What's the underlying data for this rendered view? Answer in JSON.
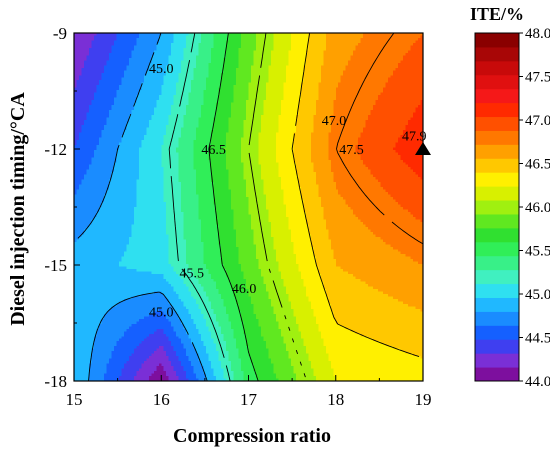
{
  "chart_data": {
    "type": "heatmap",
    "subtype": "filled-contour",
    "title": "",
    "xlabel": "Compression ratio",
    "ylabel": "Diesel injection timing/°CA",
    "xlim": [
      15,
      19
    ],
    "ylim": [
      -18,
      -9
    ],
    "x_ticks": [
      "15",
      "16",
      "17",
      "18",
      "19"
    ],
    "y_ticks": [
      "-9",
      "-12",
      "-15",
      "-18"
    ],
    "x": [
      15,
      16,
      17,
      18,
      19
    ],
    "y": [
      -9,
      -12,
      -15,
      -18
    ],
    "z_grid": [
      [
        44.2,
        45.0,
        46.3,
        47.3,
        47.6
      ],
      [
        44.6,
        45.4,
        46.5,
        47.5,
        47.95
      ],
      [
        45.1,
        45.3,
        46.3,
        47.2,
        47.4
      ],
      [
        45.2,
        44.0,
        45.9,
        46.8,
        46.9
      ]
    ],
    "z_units": "ITE/%",
    "colorbar": {
      "title": "ITE/%",
      "min": 44.0,
      "max": 48.0,
      "tick_labels": [
        "48.0",
        "47.5",
        "47.0",
        "46.5",
        "46.0",
        "45.5",
        "45.0",
        "44.5",
        "44.0"
      ],
      "levels_step": 0.2,
      "colors": [
        "#7d0f9e",
        "#7a2fd6",
        "#3f3ff0",
        "#1560ff",
        "#1a8cff",
        "#20b8ff",
        "#2fe0f0",
        "#40f0c0",
        "#38f088",
        "#30ee58",
        "#30e030",
        "#60e820",
        "#a0f010",
        "#d8f000",
        "#fff000",
        "#ffc800",
        "#ffa000",
        "#ff7800",
        "#ff5000",
        "#ff2a00",
        "#f51818",
        "#e01010",
        "#c80a0a",
        "#a80606",
        "#8a0000"
      ]
    },
    "contour_lines": [
      {
        "level": 45.0,
        "label": "45.0"
      },
      {
        "level": 45.5,
        "label": "45.5"
      },
      {
        "level": 46.0,
        "label": "46.0"
      },
      {
        "level": 46.5,
        "label": "46.5"
      },
      {
        "level": 47.0,
        "label": "47.0"
      },
      {
        "level": 47.5,
        "label": "47.5"
      }
    ],
    "contour_annotations": [
      {
        "text": "45.0",
        "x": 16.0,
        "y": -9.9
      },
      {
        "text": "45.0",
        "x": 16.0,
        "y": -16.2
      },
      {
        "text": "45.5",
        "x": 16.35,
        "y": -15.2
      },
      {
        "text": "46.0",
        "x": 16.95,
        "y": -15.6
      },
      {
        "text": "46.5",
        "x": 16.6,
        "y": -12.0
      },
      {
        "text": "47.0",
        "x": 17.98,
        "y": -11.25
      },
      {
        "text": "47.5",
        "x": 18.18,
        "y": -12.0
      },
      {
        "text": "47.9",
        "x": 18.9,
        "y": -11.65
      }
    ],
    "marker": {
      "shape": "triangle",
      "x": 19.0,
      "y": -12.0,
      "label": "47.9"
    }
  }
}
